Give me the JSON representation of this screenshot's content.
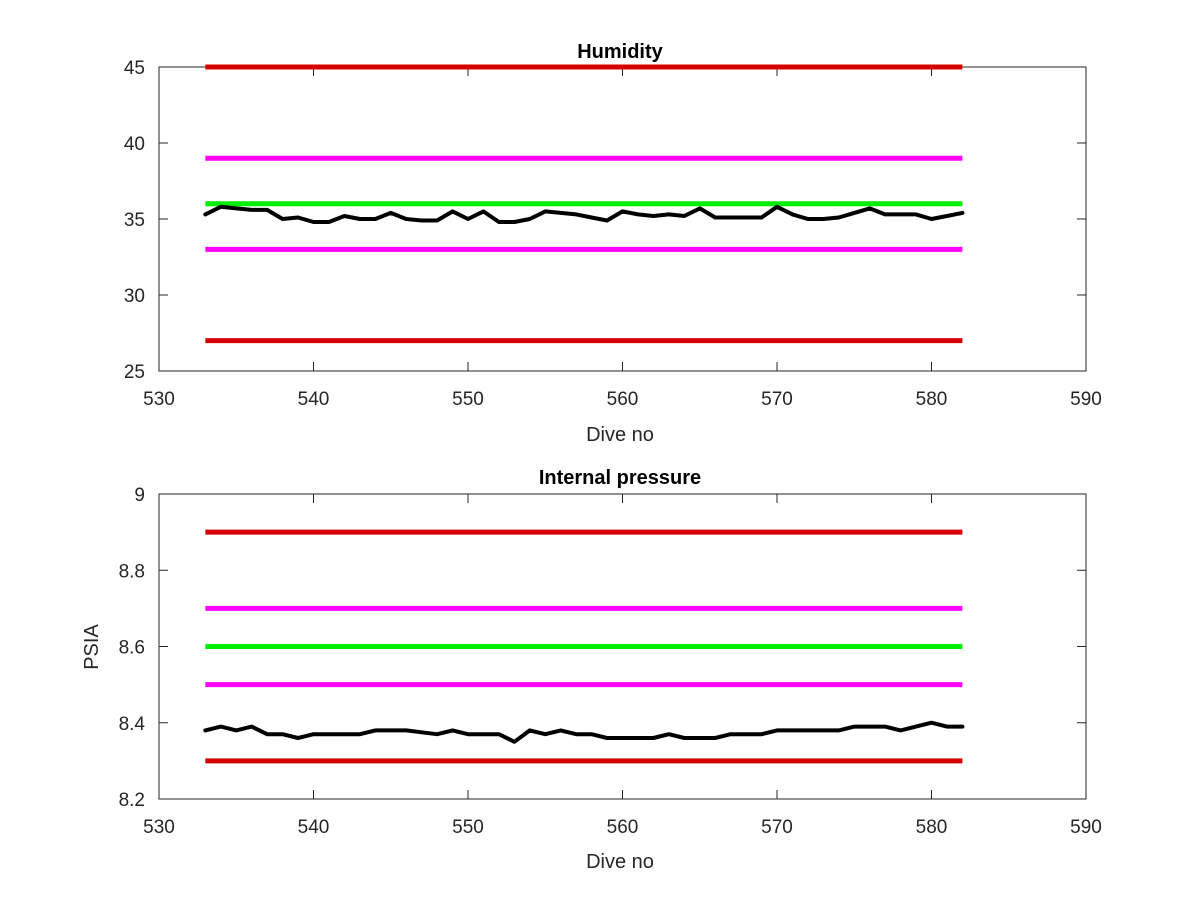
{
  "chart_data": [
    {
      "type": "line",
      "title": "Humidity",
      "xlabel": "Dive no",
      "ylabel": "",
      "xlim": [
        530,
        590
      ],
      "ylim": [
        25,
        45
      ],
      "xticks": [
        "530",
        "540",
        "550",
        "560",
        "570",
        "580",
        "590"
      ],
      "yticks": [
        "25",
        "30",
        "35",
        "40",
        "45"
      ],
      "grid": false,
      "limit_lines": [
        {
          "y": 45,
          "x": [
            533,
            582
          ],
          "color": "#d40000"
        },
        {
          "y": 39,
          "x": [
            533,
            582
          ],
          "color": "#ff00ff"
        },
        {
          "y": 36,
          "x": [
            533,
            582
          ],
          "color": "#00ee00"
        },
        {
          "y": 33,
          "x": [
            533,
            582
          ],
          "color": "#ff00ff"
        },
        {
          "y": 27,
          "x": [
            533,
            582
          ],
          "color": "#d40000"
        }
      ],
      "series": [
        {
          "color": "#000000",
          "x": [
            533,
            534,
            535,
            536,
            537,
            538,
            539,
            540,
            541,
            542,
            543,
            544,
            545,
            546,
            547,
            548,
            549,
            550,
            551,
            552,
            553,
            554,
            555,
            556,
            557,
            558,
            559,
            560,
            561,
            562,
            563,
            564,
            565,
            566,
            567,
            568,
            569,
            570,
            571,
            572,
            573,
            574,
            575,
            576,
            577,
            578,
            579,
            580,
            581,
            582
          ],
          "values": [
            35.3,
            35.8,
            35.7,
            35.6,
            35.6,
            35.0,
            35.1,
            34.8,
            34.8,
            35.2,
            35.0,
            35.0,
            35.4,
            35.0,
            34.9,
            34.9,
            35.5,
            35.0,
            35.5,
            34.8,
            34.8,
            35.0,
            35.5,
            35.4,
            35.3,
            35.1,
            34.9,
            35.5,
            35.3,
            35.2,
            35.3,
            35.2,
            35.7,
            35.1,
            35.1,
            35.1,
            35.1,
            35.8,
            35.3,
            35.0,
            35.0,
            35.1,
            35.4,
            35.7,
            35.3,
            35.3,
            35.3,
            35.0,
            35.2,
            35.4
          ]
        }
      ]
    },
    {
      "type": "line",
      "title": "Internal pressure",
      "xlabel": "Dive no",
      "ylabel": "PSIA",
      "xlim": [
        530,
        590
      ],
      "ylim": [
        8.2,
        9.0
      ],
      "xticks": [
        "530",
        "540",
        "550",
        "560",
        "570",
        "580",
        "590"
      ],
      "yticks": [
        "8.2",
        "8.4",
        "8.6",
        "8.8",
        "9"
      ],
      "grid": false,
      "limit_lines": [
        {
          "y": 8.9,
          "x": [
            533,
            582
          ],
          "color": "#d40000"
        },
        {
          "y": 8.7,
          "x": [
            533,
            582
          ],
          "color": "#ff00ff"
        },
        {
          "y": 8.6,
          "x": [
            533,
            582
          ],
          "color": "#00ee00"
        },
        {
          "y": 8.5,
          "x": [
            533,
            582
          ],
          "color": "#ff00ff"
        },
        {
          "y": 8.3,
          "x": [
            533,
            582
          ],
          "color": "#d40000"
        }
      ],
      "series": [
        {
          "color": "#000000",
          "x": [
            533,
            534,
            535,
            536,
            537,
            538,
            539,
            540,
            541,
            542,
            543,
            544,
            545,
            546,
            547,
            548,
            549,
            550,
            551,
            552,
            553,
            554,
            555,
            556,
            557,
            558,
            559,
            560,
            561,
            562,
            563,
            564,
            565,
            566,
            567,
            568,
            569,
            570,
            571,
            572,
            573,
            574,
            575,
            576,
            577,
            578,
            579,
            580,
            581,
            582
          ],
          "values": [
            8.38,
            8.39,
            8.38,
            8.39,
            8.37,
            8.37,
            8.36,
            8.37,
            8.37,
            8.37,
            8.37,
            8.38,
            8.38,
            8.38,
            8.375,
            8.37,
            8.38,
            8.37,
            8.37,
            8.37,
            8.35,
            8.38,
            8.37,
            8.38,
            8.37,
            8.37,
            8.36,
            8.36,
            8.36,
            8.36,
            8.37,
            8.36,
            8.36,
            8.36,
            8.37,
            8.37,
            8.37,
            8.38,
            8.38,
            8.38,
            8.38,
            8.38,
            8.39,
            8.39,
            8.39,
            8.38,
            8.39,
            8.4,
            8.39,
            8.39
          ]
        }
      ]
    }
  ]
}
